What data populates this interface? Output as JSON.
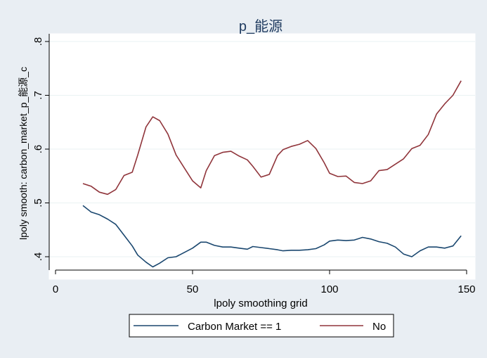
{
  "chart_data": {
    "type": "line",
    "title": "p_能源",
    "xlabel": "lpoly smoothing grid",
    "ylabel": "lpoly smooth: carbon_market_p_能源_c",
    "xlim": [
      0,
      150
    ],
    "ylim": [
      0.4,
      0.8
    ],
    "x_ticks": [
      0,
      50,
      100,
      150
    ],
    "x_tick_labels": [
      "0",
      "50",
      "100",
      "150"
    ],
    "y_ticks": [
      0.4,
      0.5,
      0.6,
      0.7,
      0.8
    ],
    "y_tick_labels": [
      ".4",
      ".5",
      ".6",
      ".7",
      ".8"
    ],
    "grid": "horizontal",
    "legend_position": "bottom",
    "series": [
      {
        "name": "Carbon Market == 1",
        "color": "#1a476f",
        "x": [
          10,
          13,
          16,
          19,
          22,
          25,
          28,
          30,
          33,
          35.5,
          38,
          41,
          44,
          47,
          50,
          53,
          55,
          58,
          61,
          64,
          67,
          70,
          72,
          75,
          78,
          81,
          83,
          86,
          89,
          92,
          95,
          98,
          100,
          103,
          106,
          109,
          112,
          115,
          118,
          121,
          124,
          127,
          130,
          133,
          136,
          139,
          142,
          145,
          148
        ],
        "values": [
          0.495,
          0.483,
          0.478,
          0.47,
          0.46,
          0.44,
          0.42,
          0.403,
          0.39,
          0.381,
          0.388,
          0.398,
          0.4,
          0.408,
          0.416,
          0.427,
          0.427,
          0.421,
          0.418,
          0.418,
          0.416,
          0.414,
          0.419,
          0.417,
          0.415,
          0.413,
          0.411,
          0.412,
          0.412,
          0.413,
          0.415,
          0.422,
          0.429,
          0.431,
          0.43,
          0.431,
          0.436,
          0.433,
          0.428,
          0.425,
          0.418,
          0.405,
          0.4,
          0.411,
          0.418,
          0.418,
          0.416,
          0.42,
          0.439
        ]
      },
      {
        "name": "No",
        "color": "#90353b",
        "x": [
          10,
          13,
          16,
          19,
          22,
          25,
          28,
          30,
          33,
          35.5,
          38,
          41,
          44,
          47,
          50,
          53,
          55,
          58,
          61,
          64,
          67,
          70,
          72,
          75,
          78,
          81,
          83,
          86,
          89,
          92,
          95,
          98,
          100,
          103,
          106,
          109,
          112,
          115,
          118,
          121,
          124,
          127,
          130,
          133,
          136,
          139,
          142,
          145,
          148
        ],
        "values": [
          0.536,
          0.531,
          0.52,
          0.516,
          0.525,
          0.551,
          0.557,
          0.589,
          0.641,
          0.66,
          0.653,
          0.628,
          0.589,
          0.565,
          0.541,
          0.528,
          0.56,
          0.588,
          0.594,
          0.596,
          0.587,
          0.58,
          0.568,
          0.548,
          0.553,
          0.588,
          0.599,
          0.605,
          0.609,
          0.616,
          0.601,
          0.575,
          0.555,
          0.549,
          0.55,
          0.538,
          0.536,
          0.541,
          0.56,
          0.562,
          0.572,
          0.582,
          0.601,
          0.607,
          0.627,
          0.665,
          0.684,
          0.7,
          0.727
        ]
      }
    ]
  }
}
